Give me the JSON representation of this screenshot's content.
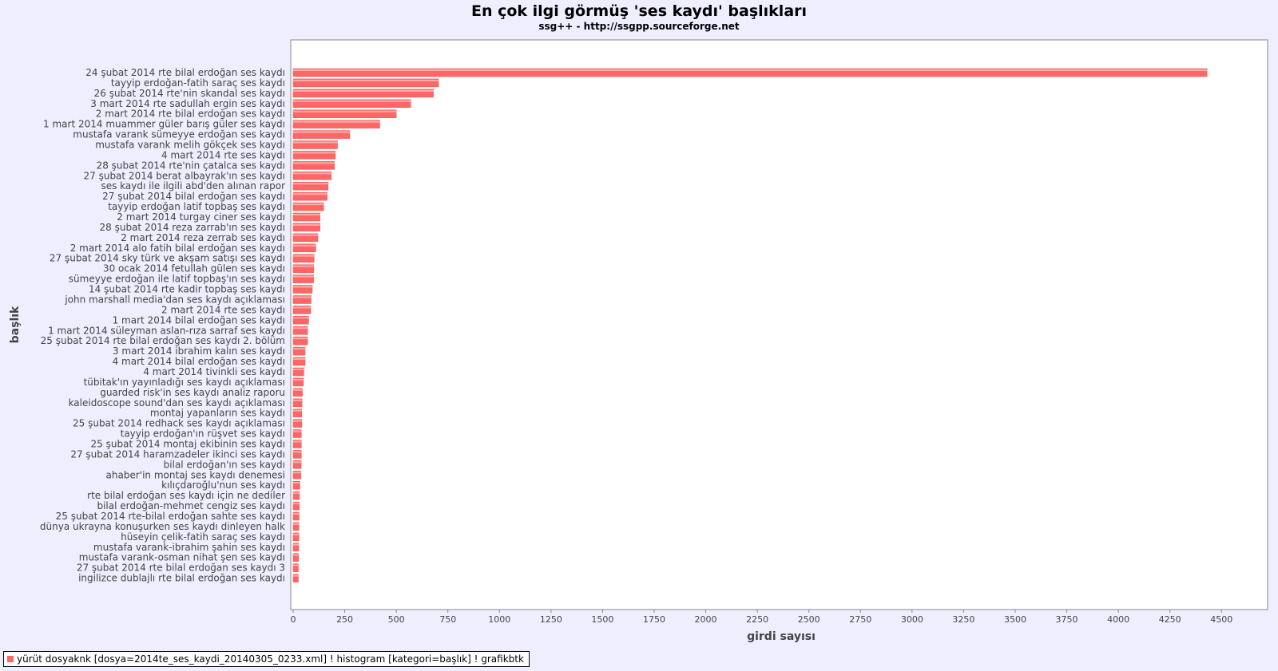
{
  "chart_data": {
    "type": "bar",
    "orientation": "horizontal",
    "title": "En çok ilgi görmüş 'ses kaydı' başlıkları",
    "subtitle": "ssg++ - http://ssgpp.sourceforge.net",
    "xlabel": "girdi sayısı",
    "ylabel": "başlık",
    "xlim": [
      0,
      4650
    ],
    "xticks": [
      "0",
      "250",
      "500",
      "750",
      "1000",
      "1250",
      "1500",
      "1750",
      "2000",
      "2250",
      "2500",
      "2750",
      "3000",
      "3250",
      "3500",
      "3750",
      "4000",
      "4250",
      "4500"
    ],
    "grid": false,
    "legend_position": "bottom-left",
    "bar_color": "#ff6666",
    "categories": [
      "24 şubat 2014 rte bilal erdoğan ses kaydı",
      "tayyip erdoğan-fatih saraç ses kaydı",
      "26 şubat 2014 rte'nin skandal ses kaydı",
      "3 mart 2014 rte sadullah ergin ses kaydı",
      "2 mart 2014 rte bilal erdoğan ses kaydı",
      "1 mart 2014 muammer güler barış güler ses kaydı",
      "mustafa varank sümeyye erdoğan ses kaydı",
      "mustafa varank melih gökçek ses kaydı",
      "4 mart 2014 rte ses kaydı",
      "28 şubat 2014 rte'nin çatalca ses kaydı",
      "27 şubat 2014 berat albayrak'ın ses kaydı",
      "ses kaydı ile ilgili abd'den alınan rapor",
      "27 şubat 2014 bilal erdoğan ses kaydı",
      "tayyip erdoğan latif topbaş ses kaydı",
      "2 mart 2014 turgay ciner ses kaydı",
      "28 şubat 2014 reza zarrab'ın ses kaydı",
      "2 mart 2014 reza zerrab ses kaydı",
      "2 mart 2014 alo fatih bilal erdoğan ses kaydı",
      "27 şubat 2014 sky türk ve akşam satışı ses kaydı",
      "30 ocak 2014 fetullah gülen ses kaydı",
      "sümeyye erdoğan ile latif topbaş'ın ses kaydı",
      "14 şubat 2014 rte kadir topbaş ses kaydı",
      "john marshall media'dan ses kaydı açıklaması",
      "2 mart 2014 rte ses kaydı",
      "1 mart 2014 bilal erdoğan ses kaydı",
      "1 mart 2014 süleyman aslan-rıza sarraf ses kaydı",
      "25 şubat 2014 rte bilal erdoğan ses kaydı 2. bölüm",
      "3 mart 2014 ibrahim kalın ses kaydı",
      "4 mart 2014 bilal erdoğan ses kaydı",
      "4 mart 2014 tivinkli ses kaydı",
      "tübitak'ın yayınladığı ses kaydı açıklaması",
      "guarded risk'in ses kaydı analiz raporu",
      "kaleidoscope sound'dan ses kaydı açıklaması",
      "montaj yapanların ses kaydı",
      "25 şubat 2014 redhack ses kaydı açıklaması",
      "tayyip erdoğan'ın rüşvet ses kaydı",
      "25 şubat 2014 montaj ekibinin ses kaydı",
      "27 şubat 2014 haramzadeler ikinci ses kaydı",
      "bilal erdoğan'ın ses kaydı",
      "ahaber'in montaj ses kaydı denemesi",
      "kılıçdaroğlu'nun ses kaydı",
      "rte bilal erdoğan ses kaydı için ne dediler",
      "bilal erdoğan-mehmet cengiz ses kaydı",
      "25 şubat 2014 rte-bilal erdoğan sahte ses kaydı",
      "dünya ukrayna konuşurken ses kaydı dinleyen halk",
      "hüseyin çelik-fatih saraç ses kaydı",
      "mustafa varank-ibrahim şahin ses kaydı",
      "mustafa varank-osman nihat şen ses kaydı",
      "27 şubat 2014 rte bilal erdoğan ses kaydı 3",
      "ingilizce dublajlı rte bilal erdoğan ses kaydı"
    ],
    "values": [
      4430,
      705,
      680,
      570,
      500,
      420,
      275,
      215,
      205,
      200,
      185,
      170,
      165,
      148,
      130,
      130,
      120,
      110,
      102,
      100,
      99,
      93,
      87,
      85,
      75,
      70,
      70,
      58,
      58,
      52,
      50,
      45,
      43,
      42,
      42,
      40,
      40,
      40,
      39,
      37,
      33,
      31,
      30,
      29,
      28,
      28,
      27,
      26,
      25,
      25
    ]
  },
  "legend": {
    "text": "yürüt dosyaknk [dosya=2014te_ses_kaydi_20140305_0233.xml] ! histogram [kategori=başlık] ! grafikbtk",
    "color": "#ff6666"
  }
}
